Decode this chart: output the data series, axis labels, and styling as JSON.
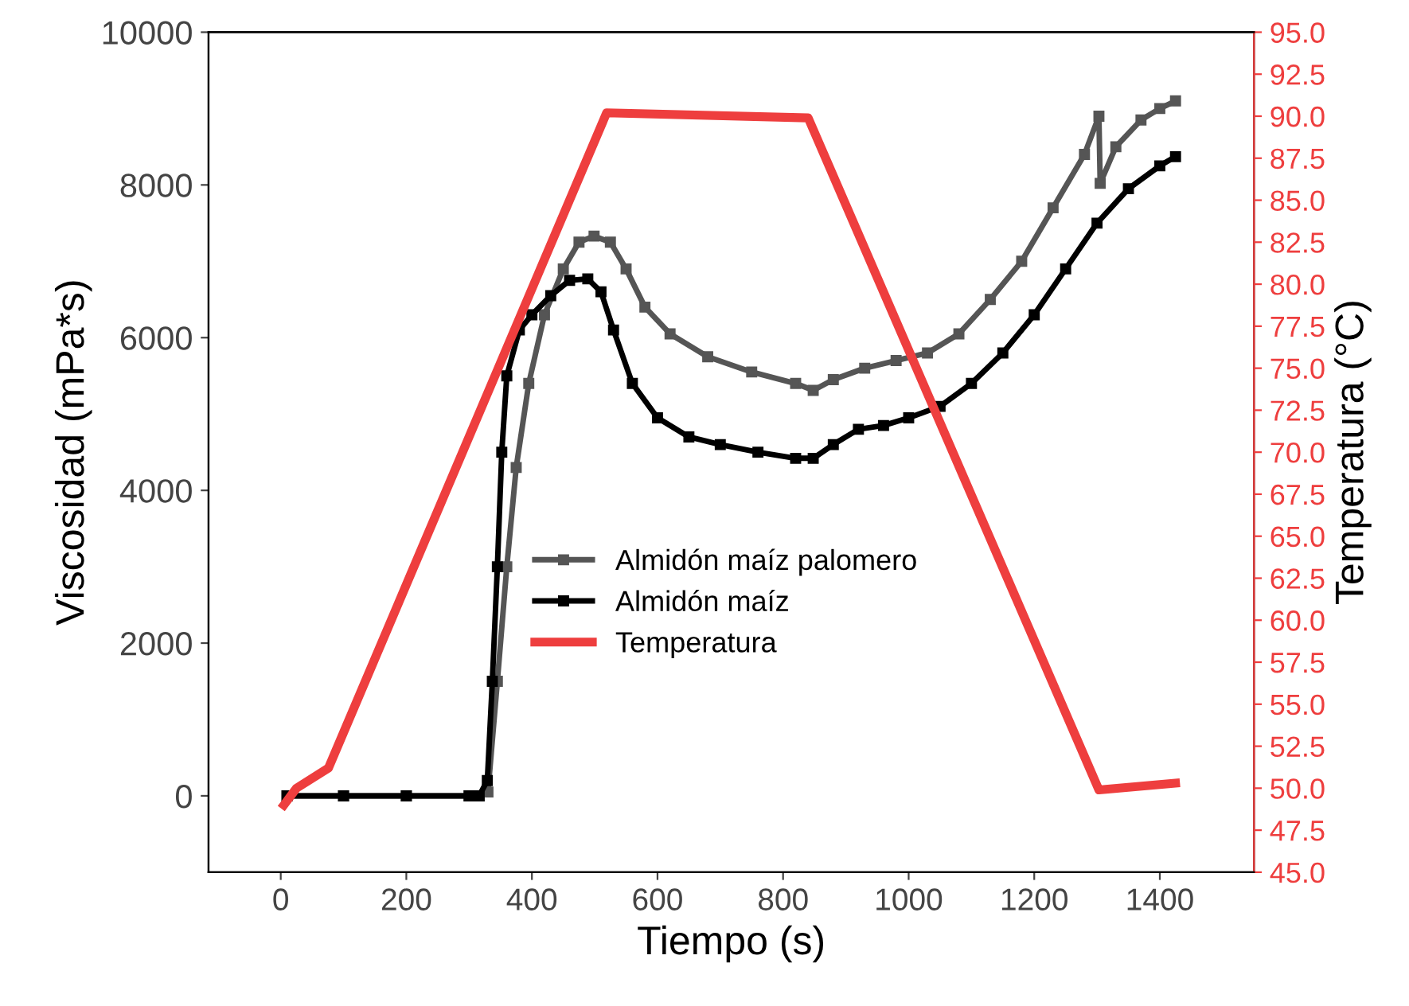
{
  "chart_data": {
    "type": "line",
    "xlabel": "Tiempo (s)",
    "ylabel": "Viscosidad (mPa*s)",
    "y2label": "Temperatura (°C)",
    "xlim": [
      -115,
      1550
    ],
    "xticks": [
      0,
      200,
      400,
      600,
      800,
      1000,
      1200,
      1400
    ],
    "ylim": [
      -1000,
      10000
    ],
    "yticks": [
      0,
      2000,
      4000,
      6000,
      8000,
      10000
    ],
    "y2lim": [
      45,
      95
    ],
    "y2ticks": [
      {
        "value": 45,
        "label": "45.0"
      },
      {
        "value": 47.5,
        "label": "47.5"
      },
      {
        "value": 50,
        "label": "50.0"
      },
      {
        "value": 52.5,
        "label": "52.5"
      },
      {
        "value": 55,
        "label": "55.0"
      },
      {
        "value": 57.5,
        "label": "57.5"
      },
      {
        "value": 60,
        "label": "60.0"
      },
      {
        "value": 62.5,
        "label": "62.5"
      },
      {
        "value": 65,
        "label": "65.0"
      },
      {
        "value": 67.5,
        "label": "67.5"
      },
      {
        "value": 70,
        "label": "70.0"
      },
      {
        "value": 72.5,
        "label": "72.5"
      },
      {
        "value": 75,
        "label": "75.0"
      },
      {
        "value": 77.5,
        "label": "77.5"
      },
      {
        "value": 80,
        "label": "80.0"
      },
      {
        "value": 82.5,
        "label": "82.5"
      },
      {
        "value": 85,
        "label": "85.0"
      },
      {
        "value": 87.5,
        "label": "87.5"
      },
      {
        "value": 90,
        "label": "90.0"
      },
      {
        "value": 92.5,
        "label": "92.5"
      },
      {
        "value": 95,
        "label": "95.0"
      }
    ],
    "grid": false,
    "legend": "center",
    "marker": "square",
    "line_style": "solid",
    "series": [
      {
        "name": "Almidón maíz palomero",
        "color": "#555555",
        "x": [
          10,
          100,
          200,
          300,
          316,
          330,
          345,
          360,
          375,
          395,
          420,
          450,
          475,
          499,
          525,
          550,
          580,
          620,
          680,
          750,
          820,
          848,
          880,
          930,
          980,
          1030,
          1080,
          1130,
          1180,
          1230,
          1280,
          1303,
          1305,
          1330,
          1370,
          1400,
          1425
        ],
        "values": [
          0,
          0,
          0,
          0,
          0,
          50,
          1500,
          3000,
          4300,
          5400,
          6300,
          6900,
          7250,
          7330,
          7250,
          6900,
          6400,
          6050,
          5750,
          5550,
          5400,
          5310,
          5450,
          5600,
          5700,
          5800,
          6050,
          6500,
          7000,
          7700,
          8400,
          8900,
          8020,
          8500,
          8850,
          9000,
          9100
        ]
      },
      {
        "name": "Almidón maíz",
        "color": "#000000",
        "x": [
          10,
          100,
          200,
          300,
          316,
          329,
          337,
          345,
          352,
          360,
          380,
          400,
          430,
          460,
          489,
          510,
          530,
          560,
          600,
          650,
          700,
          760,
          820,
          848,
          880,
          920,
          960,
          1000,
          1050,
          1100,
          1150,
          1200,
          1250,
          1300,
          1350,
          1400,
          1425
        ],
        "values": [
          0,
          0,
          0,
          0,
          0,
          200,
          1500,
          3000,
          4500,
          5500,
          6100,
          6300,
          6550,
          6750,
          6770,
          6600,
          6100,
          5400,
          4950,
          4700,
          4600,
          4500,
          4420,
          4420,
          4600,
          4800,
          4850,
          4950,
          5100,
          5400,
          5800,
          6300,
          6900,
          7500,
          7950,
          8250,
          8370
        ]
      },
      {
        "name": "Temperatura",
        "color": "#ee3e3e",
        "axis": "y2",
        "marker": "none",
        "x": [
          5,
          25,
          76,
          519,
          840,
          1303,
          1425
        ],
        "values": [
          49,
          50,
          51.2,
          90.2,
          89.9,
          49.9,
          50.3
        ]
      }
    ]
  }
}
